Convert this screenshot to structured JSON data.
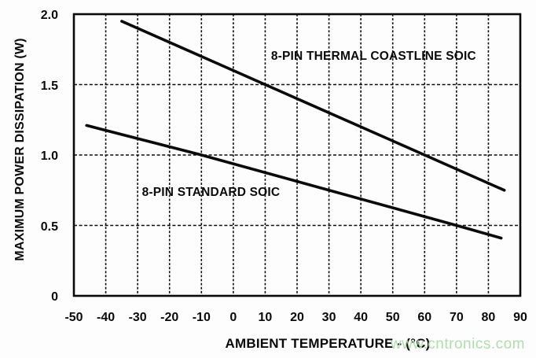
{
  "chart_data": {
    "type": "line",
    "title": "",
    "xlabel": "AMBIENT TEMPERATURE - (°C)",
    "ylabel": "MAXIMUM POWER DISSIPATION (W)",
    "xlim": [
      -50,
      90
    ],
    "ylim": [
      0,
      2.0
    ],
    "xticks": [
      -50,
      -40,
      -30,
      -20,
      -10,
      0,
      10,
      20,
      30,
      40,
      50,
      60,
      70,
      80,
      90
    ],
    "xtick_labels": [
      "-50",
      "-40",
      "-30",
      "-20",
      "-10",
      "0",
      "10",
      "20",
      "30",
      "40",
      "50",
      "60",
      "70",
      "80",
      "90"
    ],
    "yticks": [
      0,
      0.5,
      1.0,
      1.5,
      2.0
    ],
    "ytick_labels": [
      "0",
      "0.5",
      "1.0",
      "1.5",
      "2.0"
    ],
    "grid": "dashed vertical lines every 10 C, dashed horizontal lines every 0.5 W, solid rectangular border",
    "legend_position": "labels annotated inside plot",
    "line_color": "#0a0a0a",
    "series": [
      {
        "name": "8-PIN THERMAL COASTLINE SOIC",
        "points": [
          [
            -35,
            1.95
          ],
          [
            10,
            1.5
          ],
          [
            60,
            1.0
          ],
          [
            85,
            0.75
          ]
        ]
      },
      {
        "name": "8-PIN STANDARD SOIC",
        "points": [
          [
            -46,
            1.21
          ],
          [
            -10,
            1.0
          ],
          [
            70,
            0.5
          ],
          [
            84,
            0.41
          ]
        ]
      }
    ],
    "annotations": [
      {
        "series": 0,
        "x": 44,
        "y": 1.7
      },
      {
        "series": 1,
        "x": -7,
        "y": 0.73
      }
    ]
  },
  "watermark": {
    "text": "www.cntronics.com",
    "color": "#b2dcae"
  }
}
